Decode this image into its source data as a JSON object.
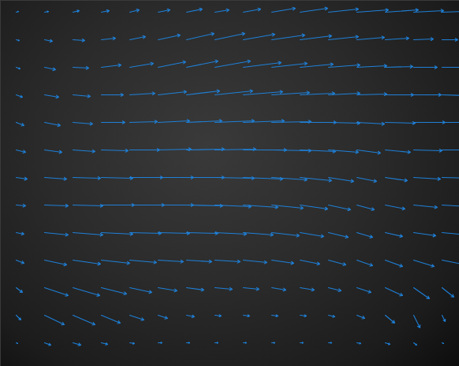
{
  "chart_data": {
    "type": "vector",
    "x": [
      20,
      56,
      92,
      128,
      164,
      200,
      236,
      272,
      308,
      344,
      380,
      416,
      452,
      488,
      524,
      560
    ],
    "y": [
      15,
      50,
      85,
      120,
      155,
      190,
      225,
      260,
      295,
      330,
      365,
      400,
      435
    ],
    "u": [
      [
        3,
        5,
        8,
        10,
        12,
        15,
        20,
        18,
        22,
        30,
        35,
        38,
        40,
        42,
        38,
        30
      ],
      [
        4,
        10,
        15,
        18,
        20,
        28,
        35,
        38,
        40,
        42,
        40,
        38,
        35,
        30,
        25,
        20
      ],
      [
        5,
        14,
        20,
        25,
        30,
        35,
        40,
        45,
        48,
        45,
        42,
        40,
        38,
        35,
        30,
        28
      ],
      [
        8,
        18,
        22,
        28,
        32,
        36,
        42,
        48,
        50,
        48,
        44,
        40,
        38,
        36,
        35,
        32
      ],
      [
        10,
        20,
        25,
        30,
        35,
        40,
        45,
        50,
        52,
        50,
        46,
        40,
        35,
        38,
        40,
        38
      ],
      [
        12,
        22,
        28,
        34,
        38,
        42,
        48,
        52,
        55,
        50,
        45,
        38,
        30,
        32,
        36,
        40
      ],
      [
        14,
        28,
        35,
        40,
        42,
        45,
        48,
        50,
        50,
        45,
        40,
        32,
        25,
        28,
        34,
        38
      ],
      [
        12,
        30,
        38,
        42,
        44,
        45,
        46,
        46,
        44,
        40,
        35,
        28,
        22,
        25,
        30,
        35
      ],
      [
        10,
        30,
        38,
        40,
        40,
        40,
        40,
        40,
        38,
        35,
        30,
        25,
        20,
        22,
        28,
        32
      ],
      [
        10,
        28,
        35,
        36,
        34,
        32,
        32,
        32,
        30,
        28,
        25,
        22,
        20,
        22,
        26,
        30
      ],
      [
        8,
        30,
        34,
        32,
        28,
        24,
        22,
        22,
        20,
        18,
        18,
        16,
        18,
        22,
        20,
        15
      ],
      [
        6,
        25,
        28,
        24,
        18,
        12,
        10,
        8,
        8,
        8,
        8,
        8,
        10,
        12,
        8,
        4
      ],
      [
        2,
        8,
        10,
        8,
        6,
        5,
        4,
        4,
        4,
        4,
        4,
        4,
        5,
        6,
        4,
        2
      ]
    ],
    "v": [
      [
        -1,
        -1,
        -2,
        -2,
        -3,
        -3,
        -4,
        -3,
        -4,
        -5,
        -5,
        -4,
        -3,
        -3,
        -2,
        -1
      ],
      [
        1,
        2,
        1,
        -2,
        -4,
        -6,
        -8,
        -8,
        -7,
        -6,
        -5,
        -4,
        -3,
        -2,
        -1,
        0
      ],
      [
        2,
        3,
        1,
        -3,
        -5,
        -7,
        -8,
        -8,
        -6,
        -5,
        -4,
        -3,
        -2,
        -1,
        0,
        0
      ],
      [
        3,
        3,
        2,
        0,
        -2,
        -4,
        -5,
        -5,
        -4,
        -3,
        -2,
        -2,
        -1,
        0,
        0,
        1
      ],
      [
        4,
        4,
        2,
        0,
        -1,
        -2,
        -2,
        -2,
        -2,
        -1,
        0,
        1,
        2,
        1,
        0,
        0
      ],
      [
        3,
        3,
        2,
        1,
        0,
        -1,
        -1,
        -1,
        0,
        1,
        2,
        3,
        4,
        3,
        1,
        0
      ],
      [
        2,
        2,
        1,
        1,
        0,
        0,
        0,
        1,
        2,
        3,
        4,
        5,
        5,
        4,
        2,
        1
      ],
      [
        1,
        1,
        1,
        0,
        0,
        0,
        1,
        2,
        3,
        4,
        5,
        6,
        6,
        5,
        3,
        2
      ],
      [
        2,
        3,
        3,
        2,
        1,
        1,
        1,
        2,
        3,
        4,
        5,
        6,
        6,
        5,
        4,
        3
      ],
      [
        4,
        6,
        5,
        4,
        3,
        2,
        2,
        2,
        3,
        4,
        5,
        6,
        7,
        8,
        8,
        6
      ],
      [
        6,
        10,
        10,
        8,
        6,
        4,
        3,
        2,
        2,
        3,
        3,
        4,
        6,
        10,
        14,
        12
      ],
      [
        6,
        12,
        12,
        10,
        6,
        4,
        2,
        1,
        1,
        1,
        1,
        2,
        4,
        10,
        16,
        8
      ],
      [
        1,
        3,
        3,
        2,
        1,
        0,
        0,
        0,
        0,
        0,
        0,
        0,
        1,
        2,
        3,
        1
      ]
    ],
    "xlim": [
      0,
      582
    ],
    "ylim": [
      0,
      465
    ],
    "tick_labels": false,
    "color": "#1f80d8"
  }
}
